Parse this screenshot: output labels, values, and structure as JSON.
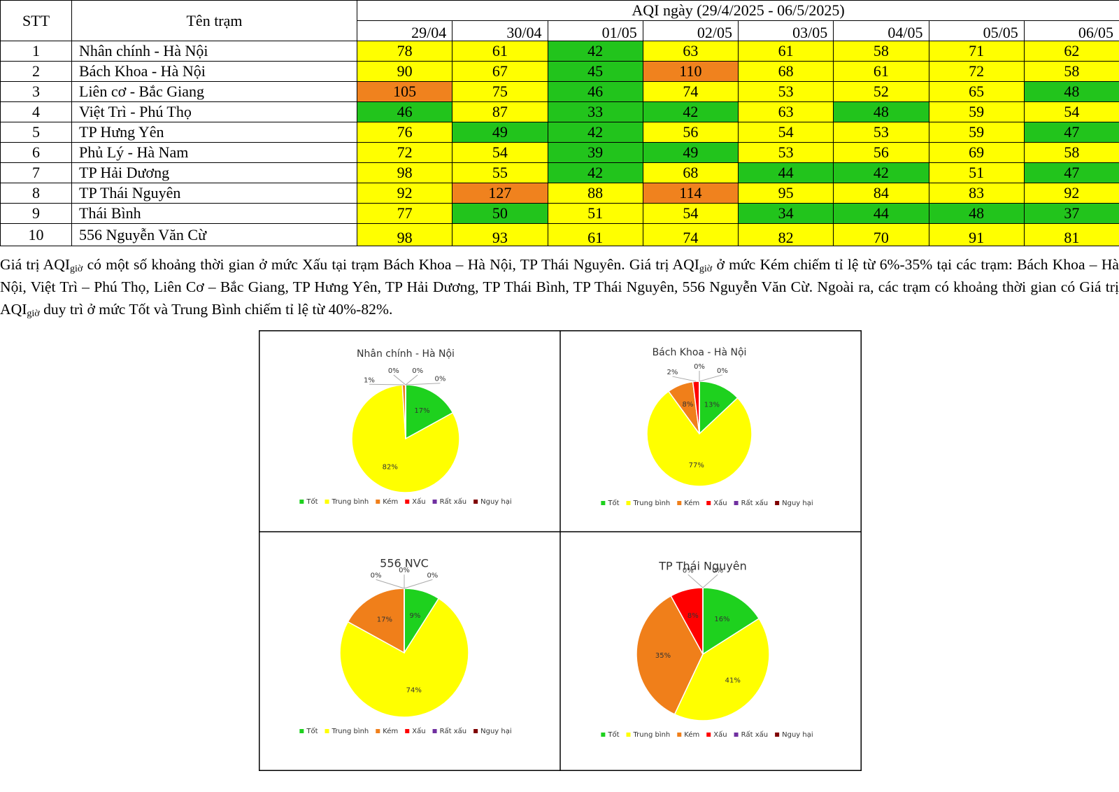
{
  "table": {
    "header": {
      "stt": "STT",
      "station": "Tên trạm",
      "period": "AQI ngày (29/4/2025 - 06/5/2025)",
      "dates": [
        "29/04",
        "30/04",
        "01/05",
        "02/05",
        "03/05",
        "04/05",
        "05/05",
        "06/05"
      ]
    },
    "rows": [
      {
        "stt": 1,
        "station": "Nhân chính - Hà Nội",
        "values": [
          78,
          61,
          42,
          63,
          61,
          58,
          71,
          62
        ],
        "colors": [
          "#ffff00",
          "#ffff00",
          "#22c41c",
          "#ffff00",
          "#ffff00",
          "#ffff00",
          "#ffff00",
          "#ffff00"
        ]
      },
      {
        "stt": 2,
        "station": "Bách Khoa - Hà Nội",
        "values": [
          90,
          67,
          45,
          110,
          68,
          61,
          72,
          58
        ],
        "colors": [
          "#ffff00",
          "#ffff00",
          "#22c41c",
          "#f0821e",
          "#ffff00",
          "#ffff00",
          "#ffff00",
          "#ffff00"
        ]
      },
      {
        "stt": 3,
        "station": "Liên cơ - Bắc Giang",
        "values": [
          105,
          75,
          46,
          74,
          53,
          52,
          65,
          48
        ],
        "colors": [
          "#f0821e",
          "#ffff00",
          "#22c41c",
          "#ffff00",
          "#ffff00",
          "#ffff00",
          "#ffff00",
          "#22c41c"
        ]
      },
      {
        "stt": 4,
        "station": "Việt Trì - Phú Thọ",
        "values": [
          46,
          87,
          33,
          42,
          63,
          48,
          59,
          54
        ],
        "colors": [
          "#22c41c",
          "#ffff00",
          "#22c41c",
          "#22c41c",
          "#ffff00",
          "#22c41c",
          "#ffff00",
          "#ffff00"
        ]
      },
      {
        "stt": 5,
        "station": "TP Hưng Yên",
        "values": [
          76,
          49,
          42,
          56,
          54,
          53,
          59,
          47
        ],
        "colors": [
          "#ffff00",
          "#22c41c",
          "#22c41c",
          "#ffff00",
          "#ffff00",
          "#ffff00",
          "#ffff00",
          "#22c41c"
        ]
      },
      {
        "stt": 6,
        "station": "Phủ Lý - Hà Nam",
        "values": [
          72,
          54,
          39,
          49,
          53,
          56,
          69,
          58
        ],
        "colors": [
          "#ffff00",
          "#ffff00",
          "#22c41c",
          "#22c41c",
          "#ffff00",
          "#ffff00",
          "#ffff00",
          "#ffff00"
        ]
      },
      {
        "stt": 7,
        "station": "TP Hải Dương",
        "values": [
          98,
          55,
          42,
          68,
          44,
          42,
          51,
          47
        ],
        "colors": [
          "#ffff00",
          "#ffff00",
          "#22c41c",
          "#ffff00",
          "#22c41c",
          "#22c41c",
          "#ffff00",
          "#22c41c"
        ]
      },
      {
        "stt": 8,
        "station": "TP Thái Nguyên",
        "values": [
          92,
          127,
          88,
          114,
          95,
          84,
          83,
          92
        ],
        "colors": [
          "#ffff00",
          "#f0821e",
          "#ffff00",
          "#f0821e",
          "#ffff00",
          "#ffff00",
          "#ffff00",
          "#ffff00"
        ]
      },
      {
        "stt": 9,
        "station": "Thái Bình",
        "values": [
          77,
          50,
          51,
          54,
          34,
          44,
          48,
          37
        ],
        "colors": [
          "#ffff00",
          "#22c41c",
          "#ffff00",
          "#ffff00",
          "#22c41c",
          "#22c41c",
          "#22c41c",
          "#22c41c"
        ]
      },
      {
        "stt": 10,
        "station": "556 Nguyễn Văn Cừ",
        "values": [
          98,
          93,
          61,
          74,
          82,
          70,
          91,
          81
        ],
        "colors": [
          "#ffff00",
          "#ffff00",
          "#ffff00",
          "#ffff00",
          "#ffff00",
          "#ffff00",
          "#ffff00",
          "#ffff00"
        ]
      }
    ]
  },
  "paragraph": [
    "Giá trị AQI",
    "giờ",
    " có một số khoảng thời gian ở mức Xấu tại trạm Bách Khoa – Hà Nội, TP Thái Nguyên. Giá trị AQI",
    "giờ",
    " ở mức Kém chiếm tỉ lệ từ 6%-35% tại các trạm: Bách Khoa – Hà Nội, Việt Trì – Phú Thọ,  Liên Cơ – Bắc Giang, TP Hưng Yên, TP Hải Dương, TP Thái Bình, TP Thái Nguyên, 556 Nguyễn Văn Cừ. Ngoài ra, các trạm có khoảng thời gian có Giá trị AQI",
    "giờ",
    " duy trì ở mức Tốt và Trung Bình chiếm tỉ lệ từ 40%-82%."
  ],
  "chart_data": [
    {
      "type": "pie",
      "title": "Nhân chính - Hà Nội",
      "categories": [
        "Tốt",
        "Trung bình",
        "Kém",
        "Xấu",
        "Rất xấu",
        "Nguy hại"
      ],
      "colors": [
        "#1ed11e",
        "#ffff00",
        "#f07f1a",
        "#ff0000",
        "#7030a0",
        "#7f0000"
      ],
      "values": [
        17,
        82,
        1,
        0,
        0,
        0
      ],
      "value_labels": [
        "17%",
        "82%",
        "1%",
        "0%",
        "0%",
        "0%"
      ]
    },
    {
      "type": "pie",
      "title": "Bách Khoa - Hà Nội",
      "categories": [
        "Tốt",
        "Trung bình",
        "Kém",
        "Xấu",
        "Rất xấu",
        "Nguy hại"
      ],
      "colors": [
        "#1ed11e",
        "#ffff00",
        "#f07f1a",
        "#ff0000",
        "#7030a0",
        "#7f0000"
      ],
      "values": [
        13,
        77,
        8,
        2,
        0,
        0
      ],
      "value_labels": [
        "13%",
        "77%",
        "8%",
        "2%",
        "0%",
        "0%"
      ]
    },
    {
      "type": "pie",
      "title": "556 NVC",
      "categories": [
        "Tốt",
        "Trung bình",
        "Kém",
        "Xấu",
        "Rất xấu",
        "Nguy hại"
      ],
      "colors": [
        "#1ed11e",
        "#ffff00",
        "#f07f1a",
        "#ff0000",
        "#7030a0",
        "#7f0000"
      ],
      "values": [
        9,
        74,
        17,
        0,
        0,
        0
      ],
      "value_labels": [
        "9%",
        "74%",
        "17%",
        "0%",
        "0%",
        "0%"
      ]
    },
    {
      "type": "pie",
      "title": "TP Thái Nguyên",
      "categories": [
        "Tốt",
        "Trung bình",
        "Kém",
        "Xấu",
        "Rất xấu",
        "Nguy hại"
      ],
      "colors": [
        "#1ed11e",
        "#ffff00",
        "#f07f1a",
        "#ff0000",
        "#7030a0",
        "#7f0000"
      ],
      "values": [
        16,
        41,
        35,
        8,
        0,
        0
      ],
      "value_labels": [
        "16%",
        "41%",
        "35%",
        "8%",
        "0%",
        "0%"
      ]
    }
  ]
}
